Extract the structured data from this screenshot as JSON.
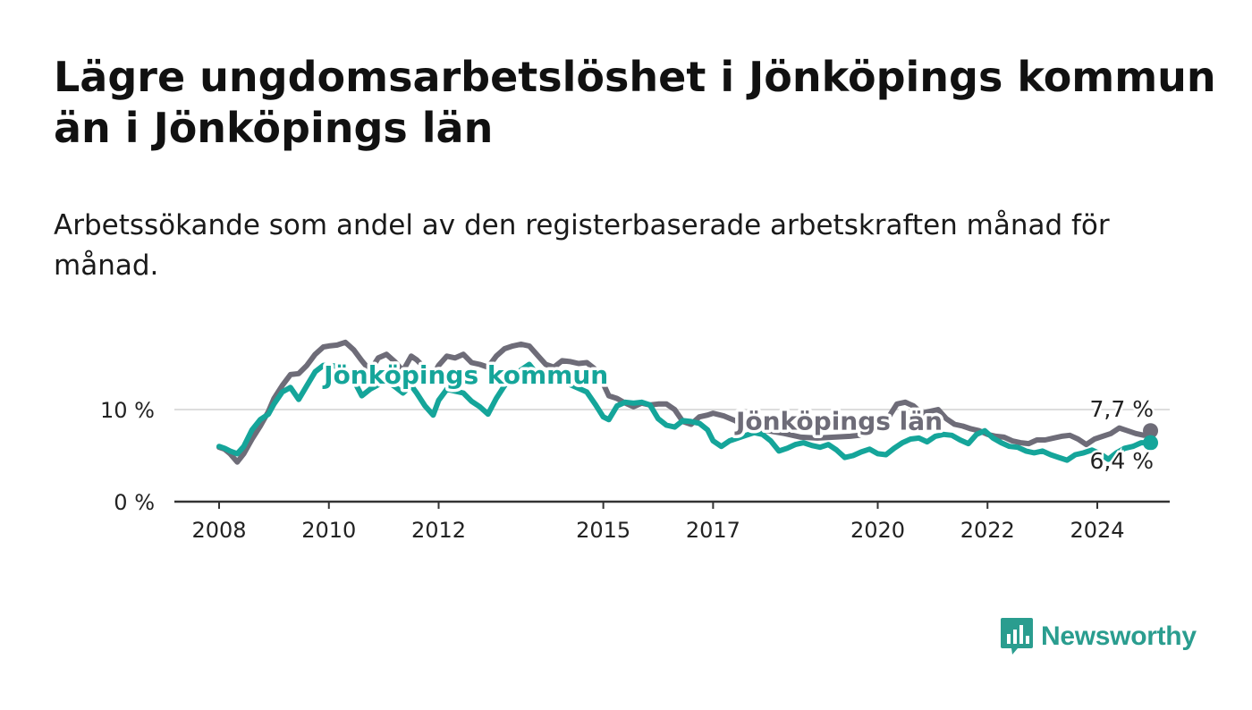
{
  "title": "Lägre ungdomsarbetslöshet i Jönköpings kommun än i Jönköpings län",
  "subtitle": "Arbetssökande som andel av den registerbaserade arbetskraften månad för månad.",
  "brand": {
    "name": "Newsworthy",
    "color": "#2a9d8f"
  },
  "colors": {
    "kommun": "#15a59a",
    "lan": "#6e6c78",
    "axis": "#333333",
    "grid": "#dddddd",
    "text": "#222222"
  },
  "chart_data": {
    "type": "line",
    "title": "Lägre ungdomsarbetslöshet i Jönköpings kommun än i Jönköpings län",
    "xlabel": "",
    "ylabel": "",
    "ylim": [
      0,
      18
    ],
    "xlim": [
      2007.5,
      2025.3
    ],
    "yticks": [
      {
        "value": 0,
        "label": "0 %"
      },
      {
        "value": 10,
        "label": "10 %"
      }
    ],
    "xticks": [
      {
        "value": 2008,
        "label": "2008"
      },
      {
        "value": 2010,
        "label": "2010"
      },
      {
        "value": 2012,
        "label": "2012"
      },
      {
        "value": 2015,
        "label": "2015"
      },
      {
        "value": 2017,
        "label": "2017"
      },
      {
        "value": 2020,
        "label": "2020"
      },
      {
        "value": 2022,
        "label": "2022"
      },
      {
        "value": 2024,
        "label": "2024"
      }
    ],
    "series": [
      {
        "name": "Jönköpings län",
        "color_key": "lan",
        "label": "Jönköpings län",
        "label_x": 2019.3,
        "label_y": 7.8,
        "end_label": "7,7 %",
        "points": [
          [
            2008.0,
            5.9
          ],
          [
            2008.1,
            5.7
          ],
          [
            2008.2,
            5.2
          ],
          [
            2008.33,
            4.3
          ],
          [
            2008.45,
            5.2
          ],
          [
            2008.6,
            6.8
          ],
          [
            2008.75,
            8.2
          ],
          [
            2008.9,
            9.8
          ],
          [
            2009.0,
            11.2
          ],
          [
            2009.15,
            12.6
          ],
          [
            2009.3,
            13.8
          ],
          [
            2009.45,
            13.9
          ],
          [
            2009.6,
            14.8
          ],
          [
            2009.75,
            16.0
          ],
          [
            2009.9,
            16.8
          ],
          [
            2010.0,
            16.9
          ],
          [
            2010.15,
            17.0
          ],
          [
            2010.3,
            17.3
          ],
          [
            2010.45,
            16.5
          ],
          [
            2010.6,
            15.3
          ],
          [
            2010.75,
            14.2
          ],
          [
            2010.9,
            15.6
          ],
          [
            2011.05,
            16.0
          ],
          [
            2011.2,
            15.2
          ],
          [
            2011.35,
            14.2
          ],
          [
            2011.5,
            15.8
          ],
          [
            2011.6,
            15.4
          ],
          [
            2011.75,
            14.5
          ],
          [
            2011.9,
            13.8
          ],
          [
            2012.0,
            14.8
          ],
          [
            2012.15,
            15.8
          ],
          [
            2012.3,
            15.6
          ],
          [
            2012.45,
            16.0
          ],
          [
            2012.6,
            15.1
          ],
          [
            2012.75,
            14.9
          ],
          [
            2012.9,
            14.6
          ],
          [
            2013.05,
            15.8
          ],
          [
            2013.2,
            16.6
          ],
          [
            2013.35,
            16.9
          ],
          [
            2013.5,
            17.1
          ],
          [
            2013.65,
            16.9
          ],
          [
            2013.8,
            15.9
          ],
          [
            2013.95,
            14.9
          ],
          [
            2014.1,
            14.6
          ],
          [
            2014.25,
            15.3
          ],
          [
            2014.4,
            15.2
          ],
          [
            2014.55,
            15.0
          ],
          [
            2014.7,
            15.1
          ],
          [
            2014.85,
            14.4
          ],
          [
            2015.0,
            12.8
          ],
          [
            2015.1,
            11.5
          ],
          [
            2015.25,
            11.2
          ],
          [
            2015.4,
            10.7
          ],
          [
            2015.55,
            10.3
          ],
          [
            2015.7,
            10.7
          ],
          [
            2015.85,
            10.5
          ],
          [
            2016.0,
            10.6
          ],
          [
            2016.15,
            10.6
          ],
          [
            2016.3,
            10.0
          ],
          [
            2016.45,
            8.7
          ],
          [
            2016.6,
            8.4
          ],
          [
            2016.75,
            9.2
          ],
          [
            2016.9,
            9.4
          ],
          [
            2017.0,
            9.6
          ],
          [
            2017.2,
            9.3
          ],
          [
            2017.4,
            8.8
          ],
          [
            2017.6,
            8.2
          ],
          [
            2017.8,
            7.8
          ],
          [
            2018.0,
            7.7
          ],
          [
            2018.3,
            7.4
          ],
          [
            2018.6,
            7.0
          ],
          [
            2018.9,
            6.9
          ],
          [
            2019.2,
            7.0
          ],
          [
            2019.5,
            7.1
          ],
          [
            2019.8,
            7.3
          ],
          [
            2020.0,
            8.0
          ],
          [
            2020.2,
            9.2
          ],
          [
            2020.35,
            10.6
          ],
          [
            2020.5,
            10.8
          ],
          [
            2020.65,
            10.4
          ],
          [
            2020.8,
            9.6
          ],
          [
            2020.95,
            9.8
          ],
          [
            2021.1,
            10.0
          ],
          [
            2021.25,
            9.0
          ],
          [
            2021.4,
            8.4
          ],
          [
            2021.55,
            8.2
          ],
          [
            2021.7,
            7.9
          ],
          [
            2021.85,
            7.7
          ],
          [
            2022.0,
            7.3
          ],
          [
            2022.15,
            7.1
          ],
          [
            2022.3,
            7.0
          ],
          [
            2022.45,
            6.6
          ],
          [
            2022.6,
            6.4
          ],
          [
            2022.75,
            6.3
          ],
          [
            2022.9,
            6.7
          ],
          [
            2023.05,
            6.7
          ],
          [
            2023.2,
            6.9
          ],
          [
            2023.35,
            7.1
          ],
          [
            2023.5,
            7.2
          ],
          [
            2023.65,
            6.8
          ],
          [
            2023.8,
            6.2
          ],
          [
            2023.95,
            6.8
          ],
          [
            2024.1,
            7.1
          ],
          [
            2024.25,
            7.4
          ],
          [
            2024.4,
            8.0
          ],
          [
            2024.55,
            7.7
          ],
          [
            2024.7,
            7.4
          ],
          [
            2024.85,
            7.2
          ],
          [
            2024.97,
            7.7
          ]
        ]
      },
      {
        "name": "Jönköpings kommun",
        "color_key": "kommun",
        "label": "Jönköpings kommun",
        "label_x": 2012.5,
        "label_y": 12.8,
        "end_label": "6,4 %",
        "points": [
          [
            2008.0,
            6.0
          ],
          [
            2008.1,
            5.8
          ],
          [
            2008.2,
            5.5
          ],
          [
            2008.33,
            5.2
          ],
          [
            2008.45,
            6.0
          ],
          [
            2008.6,
            7.8
          ],
          [
            2008.75,
            8.9
          ],
          [
            2008.9,
            9.5
          ],
          [
            2009.0,
            10.6
          ],
          [
            2009.15,
            11.9
          ],
          [
            2009.3,
            12.4
          ],
          [
            2009.45,
            11.1
          ],
          [
            2009.6,
            12.6
          ],
          [
            2009.75,
            14.1
          ],
          [
            2009.9,
            14.8
          ],
          [
            2010.0,
            14.8
          ],
          [
            2010.15,
            14.7
          ],
          [
            2010.3,
            14.4
          ],
          [
            2010.45,
            13.2
          ],
          [
            2010.6,
            11.5
          ],
          [
            2010.75,
            12.2
          ],
          [
            2010.9,
            12.7
          ],
          [
            2011.05,
            13.1
          ],
          [
            2011.2,
            12.5
          ],
          [
            2011.35,
            11.8
          ],
          [
            2011.5,
            12.6
          ],
          [
            2011.6,
            11.8
          ],
          [
            2011.75,
            10.4
          ],
          [
            2011.9,
            9.4
          ],
          [
            2012.0,
            11.0
          ],
          [
            2012.15,
            12.2
          ],
          [
            2012.3,
            12.0
          ],
          [
            2012.45,
            11.8
          ],
          [
            2012.6,
            10.9
          ],
          [
            2012.75,
            10.3
          ],
          [
            2012.9,
            9.5
          ],
          [
            2013.05,
            11.2
          ],
          [
            2013.2,
            12.6
          ],
          [
            2013.35,
            13.5
          ],
          [
            2013.5,
            14.3
          ],
          [
            2013.65,
            14.9
          ],
          [
            2013.8,
            13.8
          ],
          [
            2013.95,
            13.4
          ],
          [
            2014.1,
            13.2
          ],
          [
            2014.25,
            13.2
          ],
          [
            2014.4,
            12.7
          ],
          [
            2014.55,
            12.3
          ],
          [
            2014.7,
            11.9
          ],
          [
            2014.85,
            10.6
          ],
          [
            2015.0,
            9.2
          ],
          [
            2015.1,
            8.9
          ],
          [
            2015.25,
            10.4
          ],
          [
            2015.4,
            10.8
          ],
          [
            2015.55,
            10.7
          ],
          [
            2015.7,
            10.8
          ],
          [
            2015.85,
            10.5
          ],
          [
            2016.0,
            9.0
          ],
          [
            2016.15,
            8.3
          ],
          [
            2016.3,
            8.1
          ],
          [
            2016.45,
            8.8
          ],
          [
            2016.6,
            8.7
          ],
          [
            2016.75,
            8.5
          ],
          [
            2016.9,
            7.8
          ],
          [
            2017.0,
            6.6
          ],
          [
            2017.15,
            6.0
          ],
          [
            2017.3,
            6.6
          ],
          [
            2017.45,
            6.9
          ],
          [
            2017.6,
            7.2
          ],
          [
            2017.75,
            7.5
          ],
          [
            2017.9,
            7.3
          ],
          [
            2018.05,
            6.6
          ],
          [
            2018.2,
            5.5
          ],
          [
            2018.35,
            5.8
          ],
          [
            2018.5,
            6.2
          ],
          [
            2018.65,
            6.4
          ],
          [
            2018.8,
            6.1
          ],
          [
            2018.95,
            5.9
          ],
          [
            2019.1,
            6.2
          ],
          [
            2019.25,
            5.6
          ],
          [
            2019.4,
            4.8
          ],
          [
            2019.55,
            5.0
          ],
          [
            2019.7,
            5.4
          ],
          [
            2019.85,
            5.7
          ],
          [
            2020.0,
            5.2
          ],
          [
            2020.15,
            5.1
          ],
          [
            2020.3,
            5.8
          ],
          [
            2020.45,
            6.4
          ],
          [
            2020.6,
            6.8
          ],
          [
            2020.75,
            6.9
          ],
          [
            2020.9,
            6.5
          ],
          [
            2021.05,
            7.1
          ],
          [
            2021.2,
            7.3
          ],
          [
            2021.35,
            7.2
          ],
          [
            2021.5,
            6.7
          ],
          [
            2021.65,
            6.3
          ],
          [
            2021.8,
            7.3
          ],
          [
            2021.95,
            7.7
          ],
          [
            2022.1,
            6.9
          ],
          [
            2022.25,
            6.4
          ],
          [
            2022.4,
            6.0
          ],
          [
            2022.55,
            5.9
          ],
          [
            2022.7,
            5.5
          ],
          [
            2022.85,
            5.3
          ],
          [
            2023.0,
            5.5
          ],
          [
            2023.15,
            5.1
          ],
          [
            2023.3,
            4.8
          ],
          [
            2023.45,
            4.5
          ],
          [
            2023.6,
            5.1
          ],
          [
            2023.75,
            5.3
          ],
          [
            2023.9,
            5.6
          ],
          [
            2024.05,
            5.2
          ],
          [
            2024.2,
            4.6
          ],
          [
            2024.35,
            5.3
          ],
          [
            2024.5,
            5.8
          ],
          [
            2024.65,
            6.0
          ],
          [
            2024.8,
            6.4
          ],
          [
            2024.97,
            6.4
          ]
        ]
      }
    ]
  }
}
